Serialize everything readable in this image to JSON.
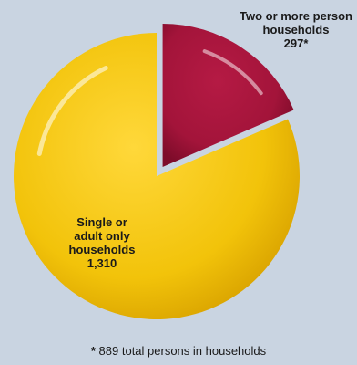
{
  "chart_data": {
    "type": "pie",
    "slices": [
      {
        "label_lines": [
          "Two or more person",
          "households"
        ],
        "value": 297,
        "value_label": "297*",
        "color": "#a3143a",
        "exploded": true
      },
      {
        "label_lines": [
          "Single or",
          "adult only",
          "households"
        ],
        "value": 1310,
        "value_label": "1,310",
        "color": "#f2c30a",
        "exploded": false
      }
    ],
    "footnote": {
      "marker": "*",
      "text": "889 total persons in households"
    }
  }
}
